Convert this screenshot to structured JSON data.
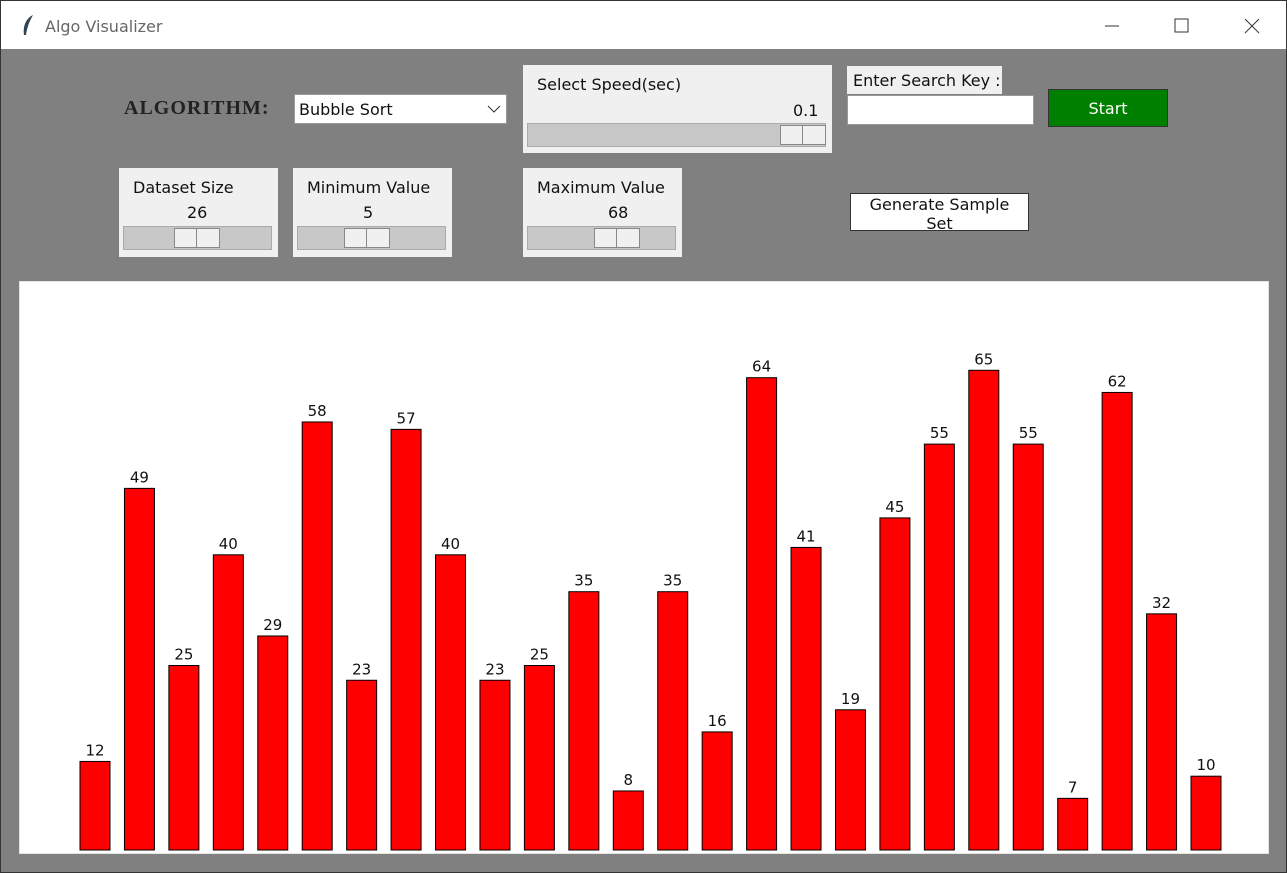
{
  "window": {
    "title": "Algo Visualizer"
  },
  "controls": {
    "algorithm_label": "ALGORITHM:",
    "algorithm_choice": "Bubble Sort",
    "speed_label": "Select Speed(sec)",
    "speed_value": 0.1,
    "search_label": "Enter Search Key :",
    "start_button": "Start",
    "size_label": "Dataset Size",
    "size_value": 26,
    "min_label": "Minimum Value",
    "min_value": 5,
    "max_label": "Maximum Value",
    "max_value": 68,
    "generate_button": "Generate Sample Set"
  },
  "chart_data": {
    "type": "bar",
    "color": "#ff0000",
    "values": [
      12,
      49,
      25,
      40,
      29,
      58,
      23,
      57,
      40,
      23,
      25,
      35,
      8,
      35,
      16,
      64,
      41,
      19,
      45,
      55,
      65,
      55,
      7,
      62,
      32,
      10
    ]
  }
}
